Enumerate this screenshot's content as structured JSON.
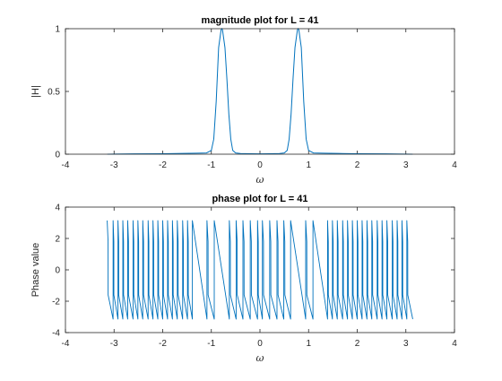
{
  "chart_data": [
    {
      "type": "line",
      "title": "magnitude plot for L = 41",
      "xlabel": "ω",
      "ylabel": "|H|",
      "xlim": [
        -4,
        4
      ],
      "ylim": [
        0,
        1
      ],
      "xticks": [
        -4,
        -3,
        -2,
        -1,
        0,
        1,
        2,
        3,
        4
      ],
      "yticks": [
        0,
        0.5,
        1
      ],
      "grid": false,
      "series_color": "#0072BD",
      "series": [
        {
          "x": [
            -3.14,
            -2.6,
            -2.0,
            -1.6,
            -1.3,
            -1.1,
            -1.0,
            -0.95,
            -0.9,
            -0.85,
            -0.8,
            -0.785,
            -0.77,
            -0.72,
            -0.68,
            -0.64,
            -0.6,
            -0.56,
            -0.5,
            -0.4,
            -0.2,
            0,
            0.2,
            0.4,
            0.5,
            0.56,
            0.6,
            0.64,
            0.68,
            0.72,
            0.77,
            0.785,
            0.8,
            0.85,
            0.9,
            0.95,
            1.0,
            1.1,
            1.3,
            1.6,
            2.0,
            2.6,
            3.14
          ],
          "values": [
            0.0,
            0.003,
            0.004,
            0.006,
            0.008,
            0.01,
            0.03,
            0.12,
            0.42,
            0.85,
            0.99,
            1.0,
            0.99,
            0.85,
            0.6,
            0.32,
            0.12,
            0.03,
            0.01,
            0.005,
            0.004,
            0.003,
            0.004,
            0.005,
            0.01,
            0.03,
            0.12,
            0.32,
            0.6,
            0.85,
            0.99,
            1.0,
            0.99,
            0.85,
            0.42,
            0.12,
            0.03,
            0.01,
            0.008,
            0.006,
            0.004,
            0.003,
            0.0
          ]
        }
      ]
    },
    {
      "type": "line",
      "title": "phase plot for L = 41",
      "xlabel": "ω",
      "ylabel": "Phase value",
      "xlim": [
        -4,
        4
      ],
      "ylim": [
        -4,
        4
      ],
      "xticks": [
        -4,
        -3,
        -2,
        -1,
        0,
        1,
        2,
        3,
        4
      ],
      "yticks": [
        -4,
        -2,
        0,
        2,
        4
      ],
      "grid": false,
      "series_color": "#0072BD",
      "series": [
        {
          "description_of_wrap": "sawtooth phase between -3.1416 and 3.1416",
          "x": [
            -3.1416,
            -3.02,
            -2.92,
            -2.82,
            -2.72,
            -2.61,
            -2.51,
            -2.41,
            -2.3,
            -2.2,
            -2.1,
            -2.0,
            -1.9,
            -1.8,
            -1.7,
            -1.59,
            -1.49,
            -1.39,
            -1.09,
            -0.94,
            -0.63,
            -0.49,
            -0.35,
            -0.2,
            -0.05,
            0.05,
            0.2,
            0.35,
            0.49,
            0.63,
            0.94,
            1.09,
            1.39,
            1.49,
            1.59,
            1.7,
            1.8,
            1.9,
            2.0,
            2.1,
            2.2,
            2.3,
            2.41,
            2.51,
            2.61,
            2.72,
            2.82,
            2.92,
            3.02,
            3.1416
          ],
          "values": [
            3.14,
            3.14,
            3.14,
            3.14,
            3.14,
            3.14,
            3.14,
            3.14,
            3.14,
            3.14,
            3.14,
            3.14,
            3.14,
            3.14,
            3.14,
            3.14,
            3.14,
            3.14,
            3.14,
            3.14,
            3.14,
            3.14,
            3.14,
            3.14,
            3.14,
            3.14,
            3.14,
            3.14,
            3.14,
            3.14,
            3.14,
            3.14,
            3.14,
            3.14,
            3.14,
            3.14,
            3.14,
            3.14,
            3.14,
            3.14,
            3.14,
            3.14,
            3.14,
            3.14,
            3.14,
            3.14,
            3.14,
            3.14,
            3.14,
            -3.14
          ]
        }
      ]
    }
  ]
}
